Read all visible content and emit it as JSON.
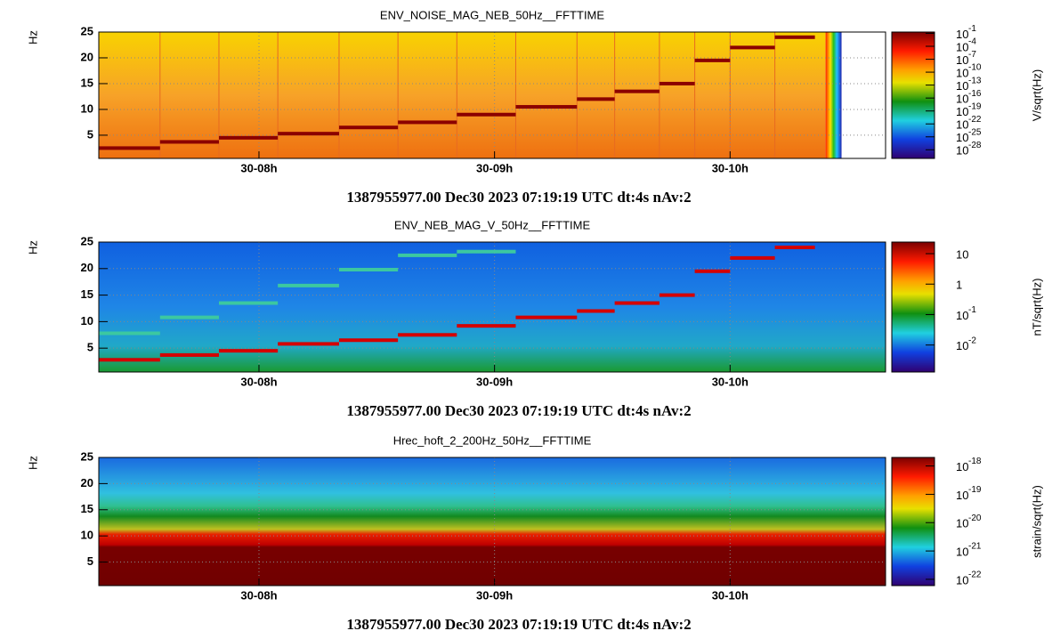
{
  "chart_data": [
    {
      "type": "spectrogram",
      "title": "ENV_NOISE_MAG_NEB_50Hz__FFTTIME",
      "ylabel": "Hz",
      "footer": "1387955977.00 Dec30 2023 07:19:19 UTC dt:4s nAv:2",
      "xlim": [
        7.32,
        10.66
      ],
      "xticks": [
        {
          "value": 8,
          "label": "30-08h"
        },
        {
          "value": 9,
          "label": "30-09h"
        },
        {
          "value": 10,
          "label": "30-10h"
        }
      ],
      "ylim": [
        0.5,
        25
      ],
      "yticks": [
        5,
        10,
        15,
        20,
        25
      ],
      "grid": true,
      "bins": [
        7.32,
        7.58,
        7.83,
        8.08,
        8.34,
        8.59,
        8.84,
        9.09,
        9.35,
        9.51,
        9.7,
        9.85,
        10.0,
        10.19,
        10.36
      ],
      "steps": [
        {
          "color": "#8b0000",
          "values": [
            2.5,
            3.7,
            4.5,
            5.3,
            6.5,
            7.5,
            9,
            10.5,
            12,
            13.5,
            15,
            19.5,
            22,
            24
          ]
        }
      ],
      "colorbar": {
        "label": "V/sqrt(Hz)",
        "log": true,
        "clim": [
          1e-30,
          0.2
        ],
        "ticks": [
          {
            "value": 0.1,
            "label": "10",
            "exponent": "-1"
          },
          {
            "value": 0.0001,
            "label": "10",
            "exponent": "-4"
          },
          {
            "value": 1e-07,
            "label": "10",
            "exponent": "-7"
          },
          {
            "value": 1e-10,
            "label": "10",
            "exponent": "-10"
          },
          {
            "value": 1e-13,
            "label": "10",
            "exponent": "-13"
          },
          {
            "value": 1e-16,
            "label": "10",
            "exponent": "-16"
          },
          {
            "value": 1e-19,
            "label": "10",
            "exponent": "-19"
          },
          {
            "value": 1e-22,
            "label": "10",
            "exponent": "-22"
          },
          {
            "value": 1e-25,
            "label": "10",
            "exponent": "-25"
          },
          {
            "value": 1e-28,
            "label": "10",
            "exponent": "-28"
          }
        ]
      }
    },
    {
      "type": "spectrogram",
      "title": "ENV_NEB_MAG_V_50Hz__FFTTIME",
      "ylabel": "Hz",
      "footer": "1387955977.00 Dec30 2023 07:19:19 UTC dt:4s nAv:2",
      "xlim": [
        7.32,
        10.66
      ],
      "xticks": [
        {
          "value": 8,
          "label": "30-08h"
        },
        {
          "value": 9,
          "label": "30-09h"
        },
        {
          "value": 10,
          "label": "30-10h"
        }
      ],
      "ylim": [
        0.5,
        25
      ],
      "yticks": [
        5,
        10,
        15,
        20,
        25
      ],
      "grid": true,
      "bins": [
        7.32,
        7.58,
        7.83,
        8.08,
        8.34,
        8.59,
        8.84,
        9.09,
        9.35,
        9.51,
        9.7,
        9.85,
        10.0,
        10.19,
        10.36
      ],
      "steps": [
        {
          "color": "#d40000",
          "values": [
            2.8,
            3.7,
            4.5,
            5.8,
            6.5,
            7.5,
            9.2,
            10.8,
            12,
            13.5,
            15,
            19.5,
            22,
            24
          ]
        },
        {
          "color": "#3cc8a0",
          "values": [
            7.8,
            10.8,
            13.5,
            16.8,
            19.8,
            22.5,
            23.2,
            null,
            null,
            null,
            null,
            null,
            null,
            null
          ]
        }
      ],
      "colorbar": {
        "label": "nT/sqrt(Hz)",
        "log": true,
        "clim": [
          0.0013,
          24
        ],
        "ticks": [
          10,
          1,
          {
            "value": 0.1,
            "label": "10",
            "exponent": "-1"
          },
          {
            "value": 0.01,
            "label": "10",
            "exponent": "-2"
          }
        ]
      }
    },
    {
      "type": "spectrogram",
      "title": "Hrec_hoft_2_200Hz_50Hz__FFTTIME",
      "ylabel": "Hz",
      "footer": "1387955977.00 Dec30 2023 07:19:19 UTC dt:4s nAv:2",
      "xlim": [
        7.32,
        10.66
      ],
      "xticks": [
        {
          "value": 8,
          "label": "30-08h"
        },
        {
          "value": 9,
          "label": "30-09h"
        },
        {
          "value": 10,
          "label": "30-10h"
        }
      ],
      "ylim": [
        0.5,
        25
      ],
      "yticks": [
        5,
        10,
        15,
        20,
        25
      ],
      "grid": true,
      "colorbar": {
        "label": "strain/sqrt(Hz)",
        "log": true,
        "clim": [
          6e-23,
          2e-18
        ],
        "ticks": [
          {
            "value": 1e-18,
            "label": "10",
            "exponent": "-18"
          },
          {
            "value": 1e-19,
            "label": "10",
            "exponent": "-19"
          },
          {
            "value": 1e-20,
            "label": "10",
            "exponent": "-20"
          },
          {
            "value": 1e-21,
            "label": "10",
            "exponent": "-21"
          },
          {
            "value": 1e-22,
            "label": "10",
            "exponent": "-22"
          }
        ]
      }
    }
  ]
}
